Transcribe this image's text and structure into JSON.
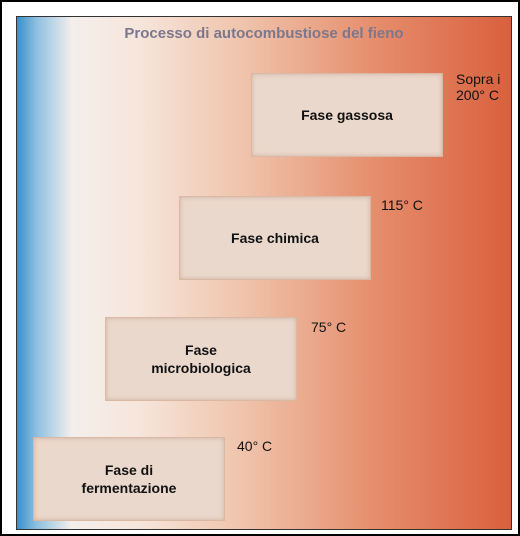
{
  "title": "Processo di autocombustiose del fieno",
  "stages": [
    {
      "label": [
        "Fase gassosa"
      ],
      "temperature": [
        "Sopra i",
        "200° C"
      ]
    },
    {
      "label": [
        "Fase chimica"
      ],
      "temperature": [
        "115° C"
      ]
    },
    {
      "label": [
        "Fase",
        "microbiologica"
      ],
      "temperature": [
        "75° C"
      ]
    },
    {
      "label": [
        "Fase di",
        "fermentazione"
      ],
      "temperature": [
        "40° C"
      ]
    }
  ]
}
